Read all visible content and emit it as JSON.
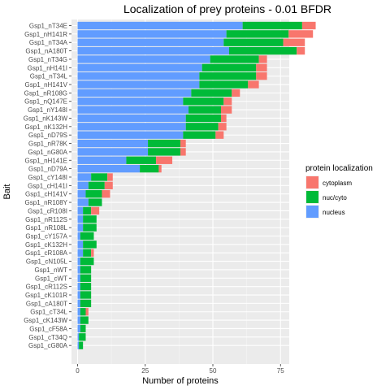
{
  "chart_data": {
    "type": "bar",
    "orientation": "horizontal",
    "stacked": true,
    "title": "Localization of prey proteins - 0.01 BFDR",
    "xlabel": "Number of proteins",
    "ylabel": "Bait",
    "xlim": [
      0,
      90
    ],
    "xticks": [
      0,
      25,
      50,
      75
    ],
    "grid": true,
    "legend_position": "right",
    "legend_title": "protein localization",
    "categories": [
      "Gsp1_nT34E",
      "Gsp1_nH141R",
      "Gsp1_nT34A",
      "Gsp1_nA180T",
      "Gsp1_nT34G",
      "Gsp1_nH141I",
      "Gsp1_nT34L",
      "Gsp1_nH141V",
      "Gsp1_nR108G",
      "Gsp1_nQ147E",
      "Gsp1_nY148I",
      "Gsp1_nK143W",
      "Gsp1_nK132H",
      "Gsp1_nD79S",
      "Gsp1_nR78K",
      "Gsp1_nG80A",
      "Gsp1_nH141E",
      "Gsp1_nD79A",
      "Gsp1_cY148I",
      "Gsp1_cH141I",
      "Gsp1_cH141V",
      "Gsp1_nR108Y",
      "Gsp1_cR108I",
      "Gsp1_nR112S",
      "Gsp1_nR108L",
      "Gsp1_cY157A",
      "Gsp1_cK132H",
      "Gsp1_cR108A",
      "Gsp1_cN105L",
      "Gsp1_nWT",
      "Gsp1_cWT",
      "Gsp1_cR112S",
      "Gsp1_cK101R",
      "Gsp1_cA180T",
      "Gsp1_cT34L",
      "Gsp1_cK143W",
      "Gsp1_cF58A",
      "Gsp1_cT34Q",
      "Gsp1_cG80A"
    ],
    "series": [
      {
        "name": "nucleus",
        "color": "#619CFF",
        "values": [
          61,
          55,
          54,
          56,
          49,
          46,
          45,
          45,
          42,
          39,
          41,
          40,
          40,
          39,
          26,
          26,
          18,
          23,
          5,
          4,
          3,
          4,
          2,
          2,
          2,
          1,
          2,
          2,
          1,
          1,
          1,
          1,
          1,
          1,
          1,
          1,
          1,
          0.5,
          0.5
        ]
      },
      {
        "name": "nuc/cyto",
        "color": "#00BA38",
        "values": [
          22,
          23,
          22,
          25,
          18,
          20,
          21,
          18,
          15,
          15,
          12,
          13,
          12,
          12,
          12,
          12,
          11,
          7,
          6,
          6,
          6,
          5,
          3,
          5,
          5,
          5,
          5,
          3,
          5,
          4,
          4,
          4,
          4,
          4,
          2,
          3,
          2,
          2.5,
          1.5
        ]
      },
      {
        "name": "cytoplasm",
        "color": "#F8766D",
        "values": [
          5,
          9,
          8,
          3,
          3,
          4,
          4,
          4,
          3,
          3,
          4,
          2,
          3,
          3,
          2,
          2,
          6,
          1,
          2,
          3,
          3,
          0,
          3,
          0,
          0,
          0,
          0,
          1,
          0,
          0,
          0,
          0,
          0,
          0,
          1,
          0,
          0,
          0,
          0
        ]
      }
    ],
    "legend_order": [
      "cytoplasm",
      "nuc/cyto",
      "nucleus"
    ]
  }
}
